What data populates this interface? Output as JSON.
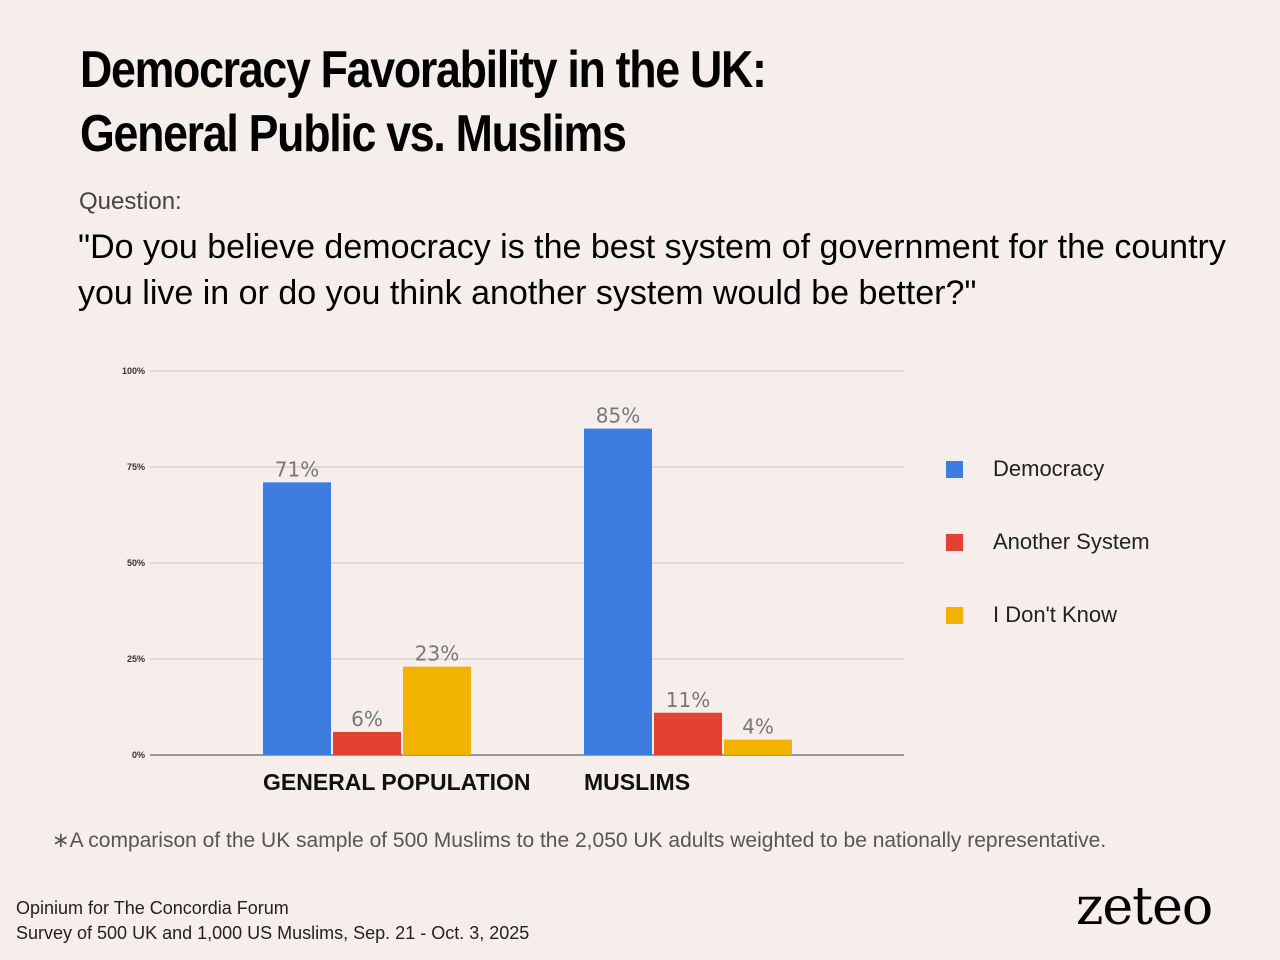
{
  "title": {
    "line1": "Democracy Favorability in the UK:",
    "line2": "General Public vs. Muslims"
  },
  "question": {
    "label": "Question:",
    "text": "\"Do you believe democracy is the best system of government for the country you live in or do you think another system would be better?\""
  },
  "chart_data": {
    "type": "bar",
    "categories": [
      "GENERAL POPULATION",
      "MUSLIMS"
    ],
    "series": [
      {
        "name": "Democracy",
        "values": [
          71,
          85
        ],
        "labels": [
          "71%",
          "85%"
        ],
        "color": "#3d7de0"
      },
      {
        "name": "Another System",
        "values": [
          6,
          11
        ],
        "labels": [
          "6%",
          "11%"
        ],
        "color": "#e34131"
      },
      {
        "name": "I Don't Know",
        "values": [
          23,
          4
        ],
        "labels": [
          "23%",
          "4%"
        ],
        "color": "#f2b200"
      }
    ],
    "yticks": [
      {
        "value": 0,
        "label": "0%"
      },
      {
        "value": 25,
        "label": "25%"
      },
      {
        "value": 50,
        "label": "50%"
      },
      {
        "value": 75,
        "label": "75%"
      },
      {
        "value": 100,
        "label": "100%"
      }
    ],
    "ylim": [
      0,
      100
    ],
    "grid": true,
    "legend_position": "right"
  },
  "footnote": "∗A comparison of the UK sample of 500 Muslims to the 2,050 UK adults weighted to be nationally representative.",
  "source": {
    "line1": "Opinium for The Concordia Forum",
    "line2": "Survey of 500 UK and 1,000 US Muslims, Sep. 21 - Oct. 3, 2025"
  },
  "logo": "zeteo",
  "colors": {
    "background": "#f5eeeb",
    "grid": "#d9d3d0",
    "axis": "#999999"
  }
}
